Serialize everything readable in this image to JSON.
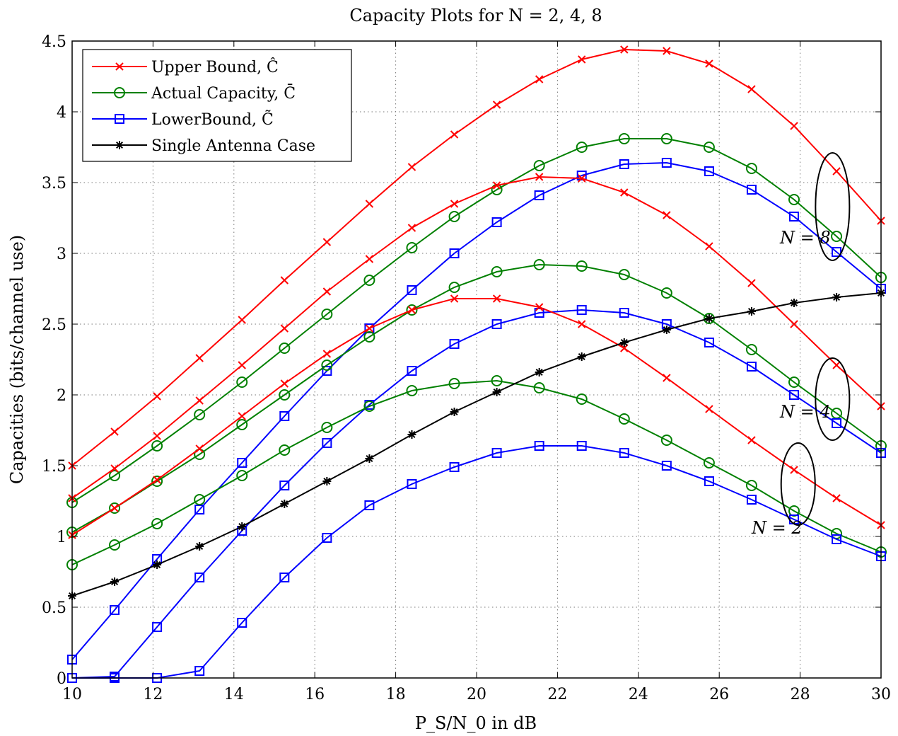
{
  "chart_data": {
    "type": "line",
    "title": "Capacity Plots for N = 2, 4, 8",
    "xlabel": "P_S/N_0 in dB",
    "ylabel": "Capacities (bits/channel use)",
    "xlim": [
      10,
      30
    ],
    "ylim": [
      0,
      4.5
    ],
    "xticks": [
      10,
      12,
      14,
      16,
      18,
      20,
      22,
      24,
      26,
      28,
      30
    ],
    "yticks": [
      0,
      0.5,
      1,
      1.5,
      2,
      2.5,
      3,
      3.5,
      4,
      4.5
    ],
    "xtick_labels": [
      "10",
      "12",
      "14",
      "16",
      "18",
      "20",
      "22",
      "24",
      "26",
      "28",
      "30"
    ],
    "ytick_labels": [
      "0",
      "0.5",
      "1",
      "1.5",
      "2",
      "2.5",
      "3",
      "3.5",
      "4",
      "4.5"
    ],
    "grid": true,
    "legend_position": "top-left",
    "legend": [
      {
        "label": "Upper Bound, Ĉ",
        "color": "#ff0000",
        "marker": "x"
      },
      {
        "label": "Actual Capacity, C̄",
        "color": "#008000",
        "marker": "o"
      },
      {
        "label": "LowerBound, C̃",
        "color": "#0000ff",
        "marker": "s"
      },
      {
        "label": "Single Antenna Case",
        "color": "#000000",
        "marker": "*"
      }
    ],
    "x": [
      10,
      11.05,
      12.1,
      13.15,
      14.2,
      15.25,
      16.3,
      17.35,
      18.4,
      19.45,
      20.5,
      21.55,
      22.6,
      23.65,
      24.7,
      25.75,
      26.8,
      27.85,
      28.9,
      30
    ],
    "series": [
      {
        "group": "N=8",
        "kind": "upper",
        "color": "#ff0000",
        "marker": "x",
        "values": [
          1.5,
          1.74,
          1.99,
          2.26,
          2.53,
          2.81,
          3.08,
          3.35,
          3.61,
          3.84,
          4.05,
          4.23,
          4.37,
          4.44,
          4.43,
          4.34,
          4.16,
          3.9,
          3.58,
          3.23
        ]
      },
      {
        "group": "N=8",
        "kind": "actual",
        "color": "#008000",
        "marker": "o",
        "values": [
          1.24,
          1.43,
          1.64,
          1.86,
          2.09,
          2.33,
          2.57,
          2.81,
          3.04,
          3.26,
          3.45,
          3.62,
          3.75,
          3.81,
          3.81,
          3.75,
          3.6,
          3.38,
          3.12,
          2.83
        ]
      },
      {
        "group": "N=8",
        "kind": "lower",
        "color": "#0000ff",
        "marker": "s",
        "values": [
          0.13,
          0.48,
          0.84,
          1.19,
          1.52,
          1.85,
          2.17,
          2.47,
          2.74,
          3.0,
          3.22,
          3.41,
          3.55,
          3.63,
          3.64,
          3.58,
          3.45,
          3.26,
          3.01,
          2.75
        ]
      },
      {
        "group": "N=4",
        "kind": "upper",
        "color": "#ff0000",
        "marker": "x",
        "values": [
          1.27,
          1.48,
          1.71,
          1.96,
          2.21,
          2.47,
          2.73,
          2.96,
          3.18,
          3.35,
          3.48,
          3.54,
          3.53,
          3.43,
          3.27,
          3.05,
          2.79,
          2.5,
          2.21,
          1.92
        ]
      },
      {
        "group": "N=4",
        "kind": "actual",
        "color": "#008000",
        "marker": "o",
        "values": [
          1.03,
          1.2,
          1.39,
          1.58,
          1.79,
          2.0,
          2.21,
          2.41,
          2.6,
          2.76,
          2.87,
          2.92,
          2.91,
          2.85,
          2.72,
          2.54,
          2.32,
          2.09,
          1.87,
          1.64
        ]
      },
      {
        "group": "N=4",
        "kind": "lower",
        "color": "#0000ff",
        "marker": "s",
        "values": [
          0.0,
          0.01,
          0.36,
          0.71,
          1.04,
          1.36,
          1.66,
          1.93,
          2.17,
          2.36,
          2.5,
          2.58,
          2.6,
          2.58,
          2.5,
          2.37,
          2.2,
          2.0,
          1.8,
          1.59
        ]
      },
      {
        "group": "N=2",
        "kind": "upper",
        "color": "#ff0000",
        "marker": "x",
        "values": [
          1.01,
          1.2,
          1.4,
          1.62,
          1.85,
          2.08,
          2.29,
          2.47,
          2.6,
          2.68,
          2.68,
          2.62,
          2.5,
          2.33,
          2.12,
          1.9,
          1.68,
          1.47,
          1.27,
          1.08
        ]
      },
      {
        "group": "N=2",
        "kind": "actual",
        "color": "#008000",
        "marker": "o",
        "values": [
          0.8,
          0.94,
          1.09,
          1.26,
          1.43,
          1.61,
          1.77,
          1.92,
          2.03,
          2.08,
          2.1,
          2.05,
          1.97,
          1.83,
          1.68,
          1.52,
          1.36,
          1.18,
          1.02,
          0.89
        ]
      },
      {
        "group": "N=2",
        "kind": "lower",
        "color": "#0000ff",
        "marker": "s",
        "values": [
          0.0,
          0.0,
          0.0,
          0.05,
          0.39,
          0.71,
          0.99,
          1.22,
          1.37,
          1.49,
          1.59,
          1.64,
          1.64,
          1.59,
          1.5,
          1.39,
          1.26,
          1.12,
          0.98,
          0.86
        ]
      },
      {
        "group": "single",
        "kind": "single",
        "color": "#000000",
        "marker": "*",
        "values": [
          0.58,
          0.68,
          0.8,
          0.93,
          1.07,
          1.23,
          1.39,
          1.55,
          1.72,
          1.88,
          2.02,
          2.16,
          2.27,
          2.37,
          2.46,
          2.54,
          2.59,
          2.65,
          2.69,
          2.72
        ]
      }
    ],
    "annotations": [
      {
        "text": "N = 8",
        "x": 27.5,
        "y": 3.07
      },
      {
        "text": "N = 4",
        "x": 27.5,
        "y": 1.84
      },
      {
        "text": "N = 2",
        "x": 26.8,
        "y": 1.02
      }
    ],
    "ellipses": [
      {
        "group": "N=8",
        "cx": 28.8,
        "cy": 3.33,
        "rx": 0.42,
        "ry": 0.38
      },
      {
        "group": "N=4",
        "cx": 28.8,
        "cy": 1.97,
        "rx": 0.42,
        "ry": 0.29
      },
      {
        "group": "N=2",
        "cx": 27.95,
        "cy": 1.37,
        "rx": 0.42,
        "ry": 0.29
      }
    ]
  }
}
